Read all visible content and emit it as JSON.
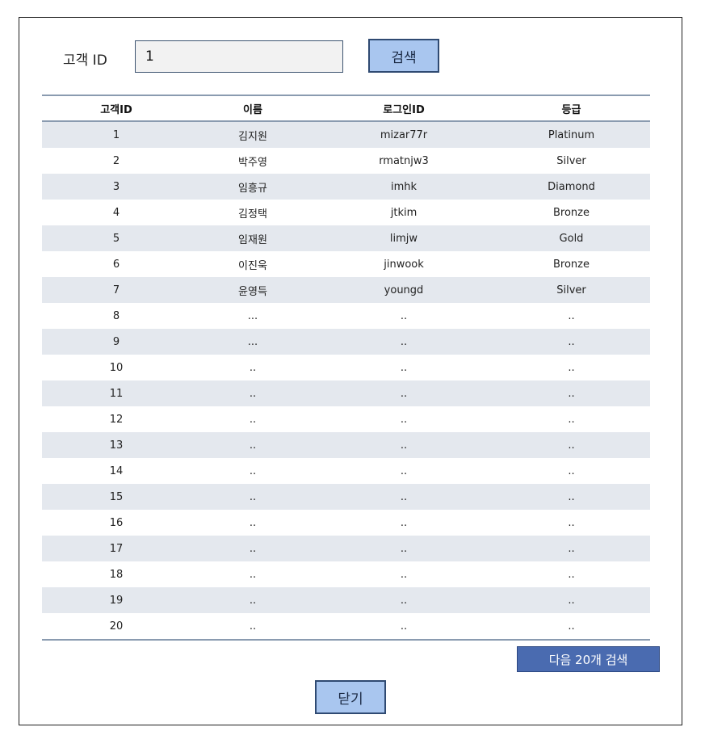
{
  "search": {
    "label": "고객 ID",
    "value": "1",
    "button_label": "검색"
  },
  "table": {
    "headers": [
      "고객ID",
      "이름",
      "로그인ID",
      "등급"
    ],
    "rows": [
      [
        "1",
        "김지원",
        "mizar77r",
        "Platinum"
      ],
      [
        "2",
        "박주영",
        "rmatnjw3",
        "Silver"
      ],
      [
        "3",
        "임흥규",
        "imhk",
        "Diamond"
      ],
      [
        "4",
        "김정택",
        "jtkim",
        "Bronze"
      ],
      [
        "5",
        "임재원",
        "limjw",
        "Gold"
      ],
      [
        "6",
        "이진욱",
        "jinwook",
        "Bronze"
      ],
      [
        "7",
        "윤영득",
        "youngd",
        "Silver"
      ],
      [
        "8",
        "...",
        "..",
        ".."
      ],
      [
        "9",
        "...",
        "..",
        ".."
      ],
      [
        "10",
        "..",
        "..",
        ".."
      ],
      [
        "11",
        "..",
        "..",
        ".."
      ],
      [
        "12",
        "..",
        "..",
        ".."
      ],
      [
        "13",
        "..",
        "..",
        ".."
      ],
      [
        "14",
        "..",
        "..",
        ".."
      ],
      [
        "15",
        "..",
        "..",
        ".."
      ],
      [
        "16",
        "..",
        "..",
        ".."
      ],
      [
        "17",
        "..",
        "..",
        ".."
      ],
      [
        "18",
        "..",
        "..",
        ".."
      ],
      [
        "19",
        "..",
        "..",
        ".."
      ],
      [
        "20",
        "..",
        "..",
        ".."
      ]
    ]
  },
  "footer": {
    "next_label": "다음 20개 검색",
    "close_label": "닫기"
  }
}
